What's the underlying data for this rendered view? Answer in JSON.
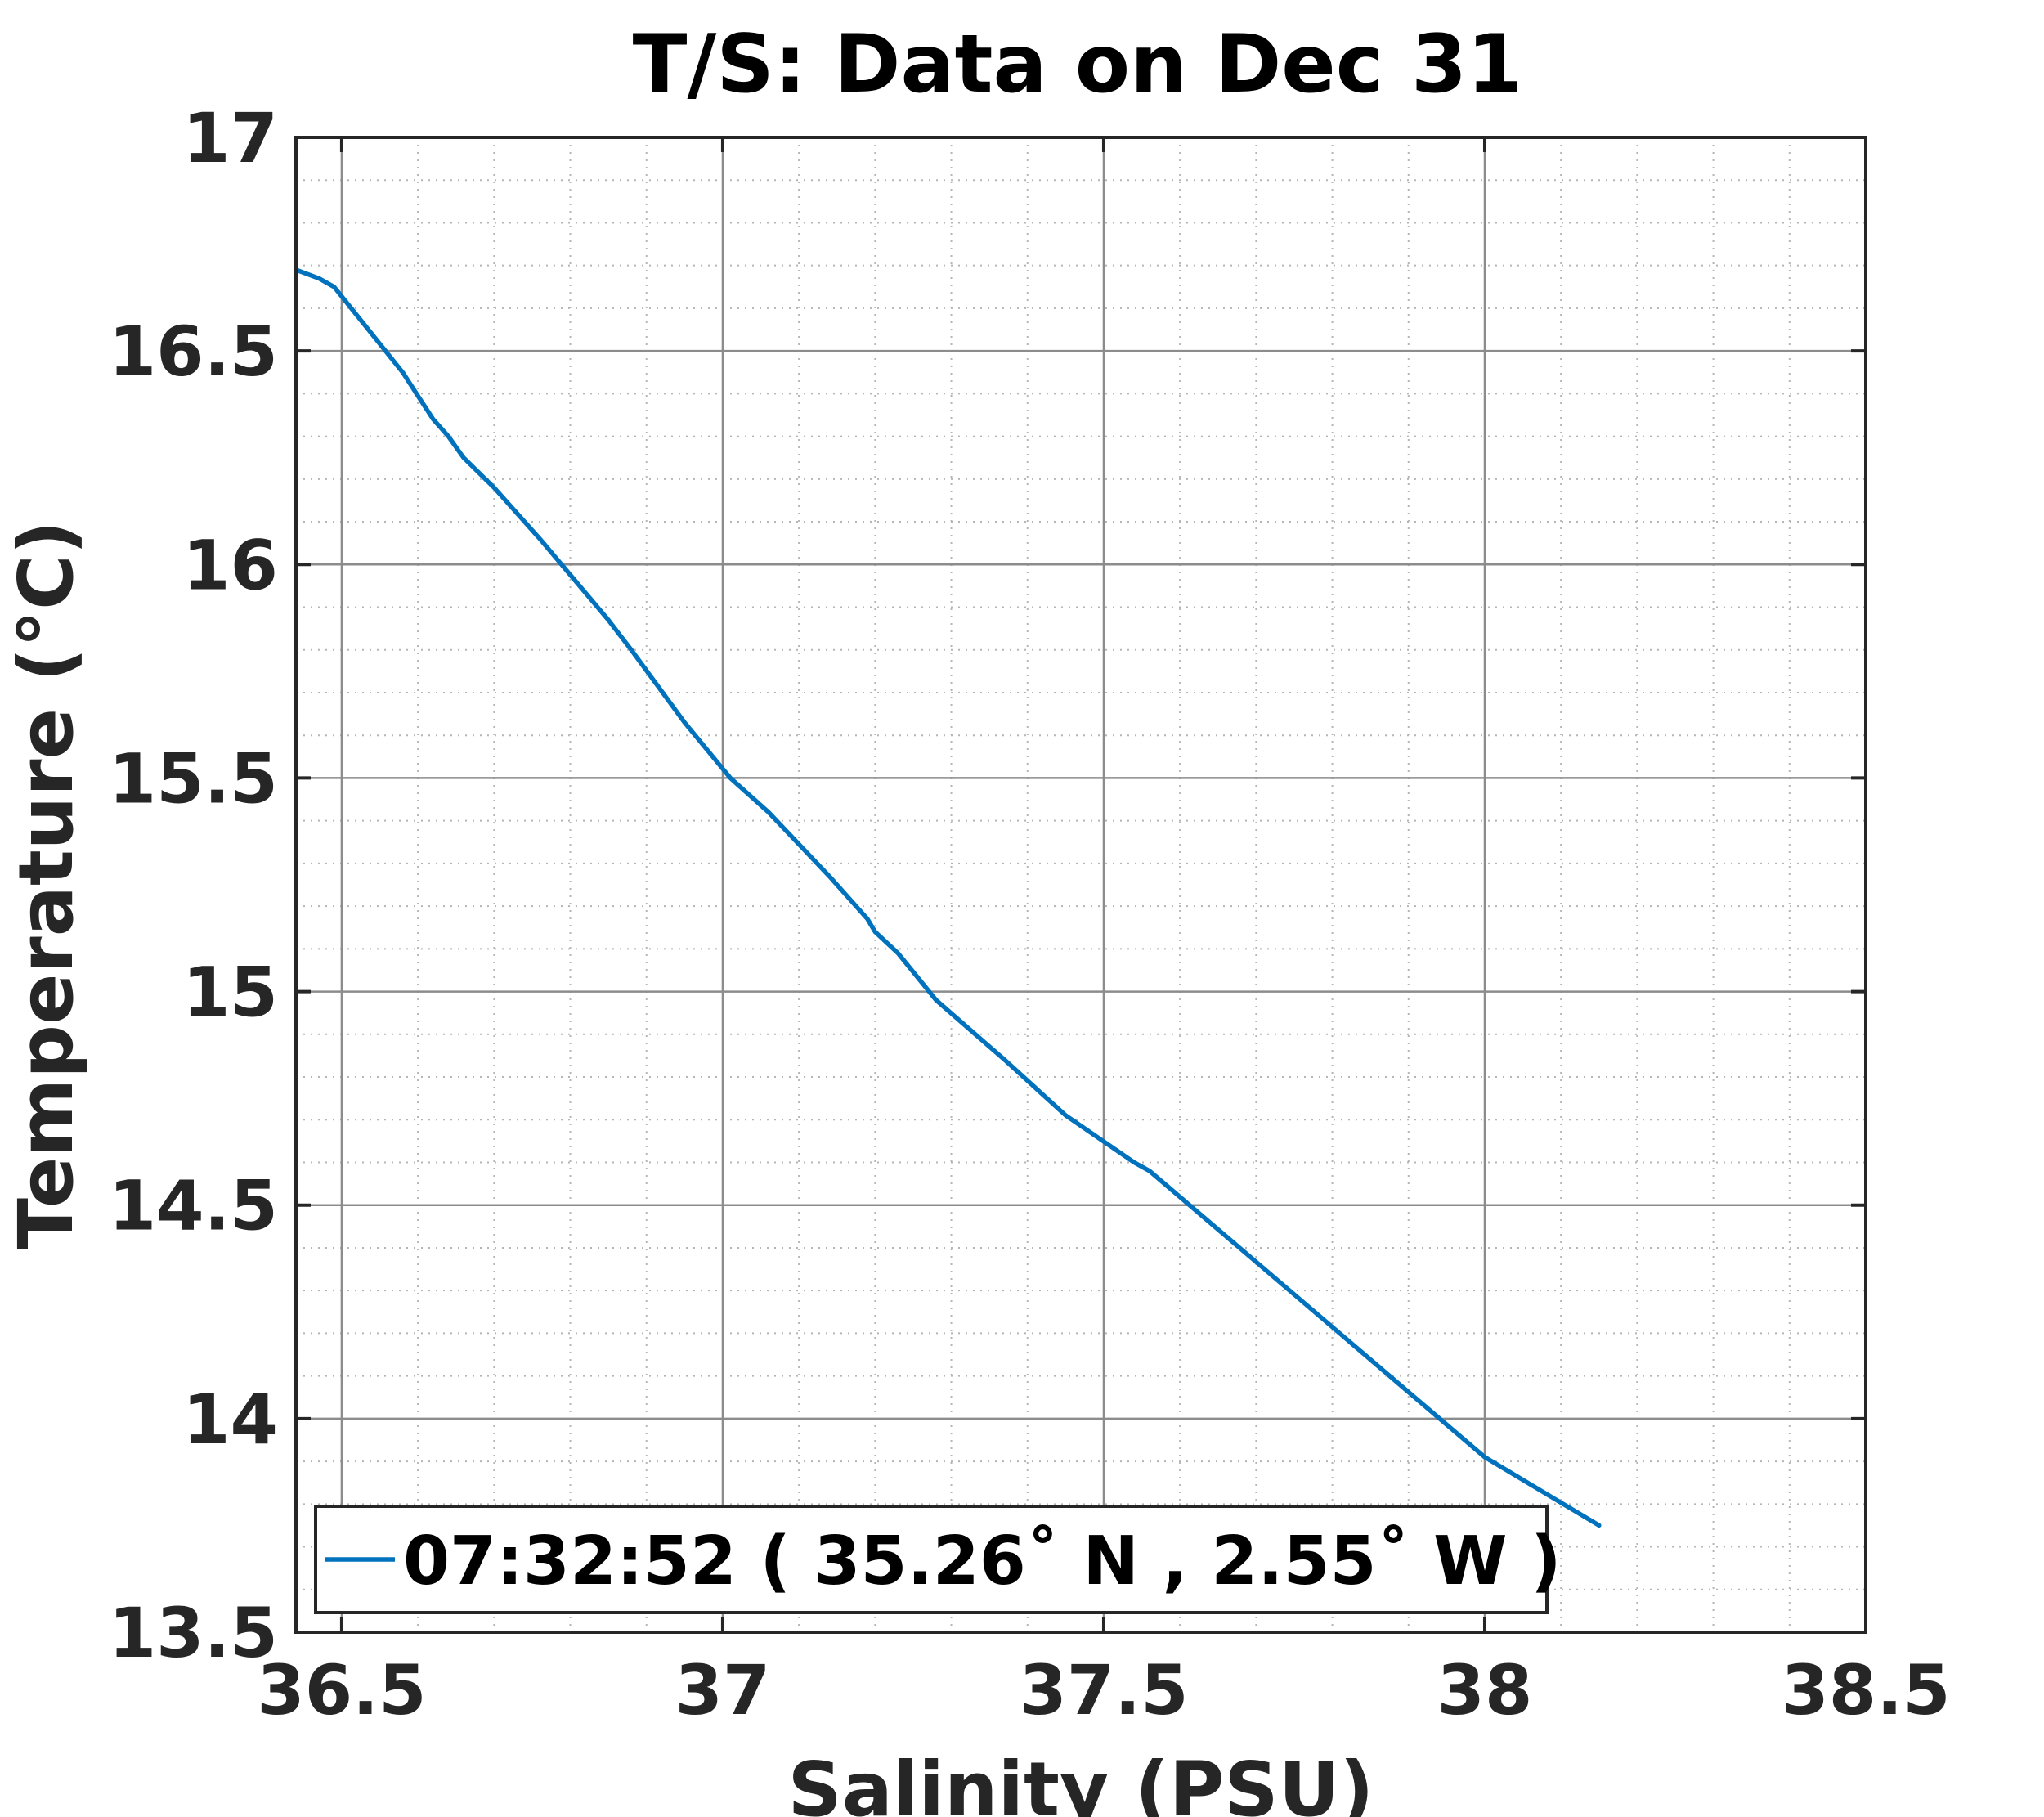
{
  "chart_data": {
    "type": "line",
    "title": "T/S: Data on Dec 31",
    "xlabel": "Salinity (PSU)",
    "ylabel": "Temperature (°C)",
    "xlim": [
      36.44,
      38.5
    ],
    "ylim": [
      13.5,
      17
    ],
    "xticks": [
      36.5,
      37,
      37.5,
      38,
      38.5
    ],
    "xtick_labels": [
      "36.5",
      "37",
      "37.5",
      "38",
      "38.5"
    ],
    "yticks": [
      13.5,
      14,
      14.5,
      15,
      15.5,
      16,
      16.5,
      17
    ],
    "ytick_labels": [
      "13.5",
      "14",
      "14.5",
      "15",
      "15.5",
      "16",
      "16.5",
      "17"
    ],
    "grid": "major and minor",
    "legend_position": "bottom-left",
    "series": [
      {
        "name": "07:32:52 ( 35.26˚ N , 2.55˚ W )",
        "color": "#0072BD",
        "x": [
          36.44,
          36.47,
          36.49,
          36.58,
          36.62,
          36.64,
          36.66,
          36.7,
          36.76,
          36.85,
          36.88,
          36.95,
          37.01,
          37.06,
          37.14,
          37.19,
          37.2,
          37.23,
          37.28,
          37.37,
          37.45,
          37.54,
          37.56,
          38.0,
          38.15
        ],
        "y": [
          16.69,
          16.67,
          16.65,
          16.45,
          16.34,
          16.3,
          16.25,
          16.18,
          16.06,
          15.87,
          15.8,
          15.63,
          15.5,
          15.42,
          15.27,
          15.17,
          15.14,
          15.09,
          14.98,
          14.84,
          14.71,
          14.6,
          14.58,
          13.91,
          13.75
        ]
      }
    ]
  }
}
